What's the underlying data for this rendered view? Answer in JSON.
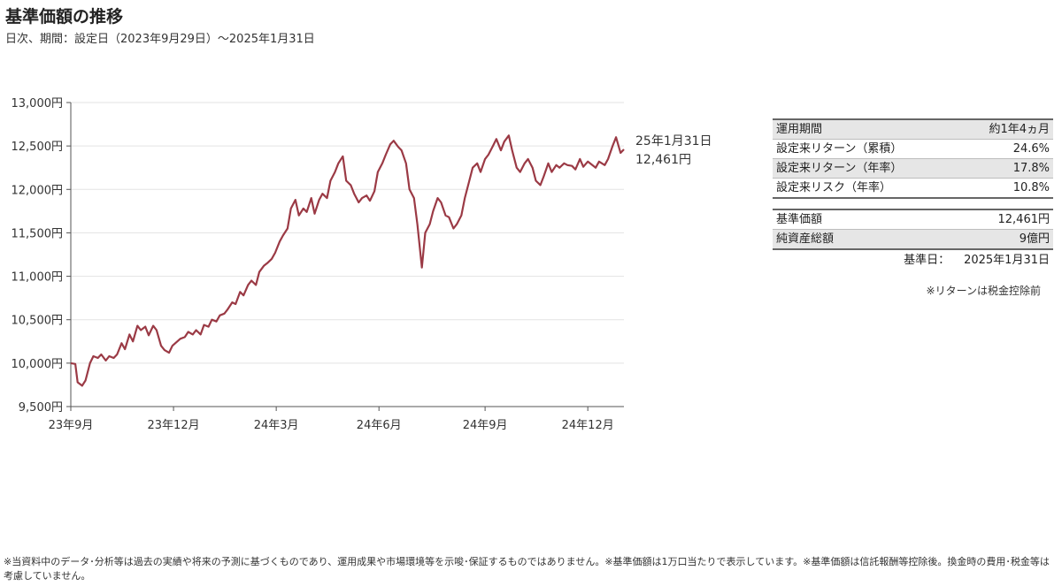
{
  "header": {
    "title": "基準価額の推移",
    "subtitle": "日次、期間：設定日（2023年9月29日）～2025年1月31日"
  },
  "chart_data": {
    "type": "line",
    "title": "",
    "xlabel": "",
    "ylabel": "",
    "ylim": [
      9500,
      13000
    ],
    "y_ticks": [
      9500,
      10000,
      10500,
      11000,
      11500,
      12000,
      12500,
      13000
    ],
    "y_tick_labels": [
      "9,500円",
      "10,000円",
      "10,500円",
      "11,000円",
      "11,500円",
      "12,000円",
      "12,500円",
      "13,000円"
    ],
    "x_ticks": [
      {
        "date": "2023-09-29",
        "label": "23年9月"
      },
      {
        "date": "2023-12-29",
        "label": "23年12月"
      },
      {
        "date": "2024-03-29",
        "label": "24年3月"
      },
      {
        "date": "2024-06-28",
        "label": "24年6月"
      },
      {
        "date": "2024-09-30",
        "label": "24年9月"
      },
      {
        "date": "2024-12-30",
        "label": "24年12月"
      }
    ],
    "x_range": [
      "2023-09-29",
      "2025-01-31"
    ],
    "grid": "horizontal",
    "line_color": "#9b3a45",
    "end_annotation": {
      "date_label": "25年1月31日",
      "value_label": "12,461円"
    },
    "series": [
      {
        "name": "",
        "points": [
          [
            "2023-09-29",
            10000
          ],
          [
            "2023-10-03",
            9990
          ],
          [
            "2023-10-05",
            9780
          ],
          [
            "2023-10-09",
            9740
          ],
          [
            "2023-10-12",
            9800
          ],
          [
            "2023-10-16",
            10000
          ],
          [
            "2023-10-19",
            10080
          ],
          [
            "2023-10-23",
            10060
          ],
          [
            "2023-10-26",
            10100
          ],
          [
            "2023-10-30",
            10030
          ],
          [
            "2023-11-02",
            10080
          ],
          [
            "2023-11-06",
            10060
          ],
          [
            "2023-11-09",
            10100
          ],
          [
            "2023-11-13",
            10230
          ],
          [
            "2023-11-16",
            10160
          ],
          [
            "2023-11-20",
            10330
          ],
          [
            "2023-11-23",
            10250
          ],
          [
            "2023-11-27",
            10430
          ],
          [
            "2023-11-30",
            10380
          ],
          [
            "2023-12-04",
            10420
          ],
          [
            "2023-12-07",
            10320
          ],
          [
            "2023-12-11",
            10430
          ],
          [
            "2023-12-14",
            10380
          ],
          [
            "2023-12-18",
            10200
          ],
          [
            "2023-12-21",
            10150
          ],
          [
            "2023-12-25",
            10120
          ],
          [
            "2023-12-28",
            10200
          ],
          [
            "2024-01-04",
            10280
          ],
          [
            "2024-01-08",
            10300
          ],
          [
            "2024-01-11",
            10360
          ],
          [
            "2024-01-15",
            10330
          ],
          [
            "2024-01-18",
            10380
          ],
          [
            "2024-01-22",
            10330
          ],
          [
            "2024-01-25",
            10440
          ],
          [
            "2024-01-29",
            10420
          ],
          [
            "2024-02-01",
            10500
          ],
          [
            "2024-02-05",
            10480
          ],
          [
            "2024-02-08",
            10550
          ],
          [
            "2024-02-12",
            10570
          ],
          [
            "2024-02-15",
            10620
          ],
          [
            "2024-02-19",
            10700
          ],
          [
            "2024-02-22",
            10680
          ],
          [
            "2024-02-26",
            10820
          ],
          [
            "2024-02-29",
            10780
          ],
          [
            "2024-03-04",
            10900
          ],
          [
            "2024-03-07",
            10950
          ],
          [
            "2024-03-11",
            10900
          ],
          [
            "2024-03-14",
            11050
          ],
          [
            "2024-03-18",
            11120
          ],
          [
            "2024-03-21",
            11150
          ],
          [
            "2024-03-25",
            11200
          ],
          [
            "2024-03-28",
            11270
          ],
          [
            "2024-04-01",
            11400
          ],
          [
            "2024-04-04",
            11470
          ],
          [
            "2024-04-08",
            11550
          ],
          [
            "2024-04-11",
            11780
          ],
          [
            "2024-04-15",
            11880
          ],
          [
            "2024-04-18",
            11700
          ],
          [
            "2024-04-22",
            11780
          ],
          [
            "2024-04-25",
            11740
          ],
          [
            "2024-04-29",
            11900
          ],
          [
            "2024-05-02",
            11720
          ],
          [
            "2024-05-06",
            11880
          ],
          [
            "2024-05-09",
            11950
          ],
          [
            "2024-05-13",
            11900
          ],
          [
            "2024-05-16",
            12100
          ],
          [
            "2024-05-20",
            12200
          ],
          [
            "2024-05-23",
            12300
          ],
          [
            "2024-05-27",
            12380
          ],
          [
            "2024-05-30",
            12100
          ],
          [
            "2024-06-03",
            12050
          ],
          [
            "2024-06-06",
            11950
          ],
          [
            "2024-06-10",
            11850
          ],
          [
            "2024-06-13",
            11900
          ],
          [
            "2024-06-17",
            11930
          ],
          [
            "2024-06-20",
            11870
          ],
          [
            "2024-06-24",
            11980
          ],
          [
            "2024-06-27",
            12200
          ],
          [
            "2024-07-01",
            12300
          ],
          [
            "2024-07-04",
            12400
          ],
          [
            "2024-07-08",
            12520
          ],
          [
            "2024-07-11",
            12560
          ],
          [
            "2024-07-15",
            12490
          ],
          [
            "2024-07-18",
            12450
          ],
          [
            "2024-07-22",
            12300
          ],
          [
            "2024-07-25",
            12000
          ],
          [
            "2024-07-29",
            11900
          ],
          [
            "2024-08-01",
            11600
          ],
          [
            "2024-08-05",
            11100
          ],
          [
            "2024-08-08",
            11500
          ],
          [
            "2024-08-12",
            11600
          ],
          [
            "2024-08-15",
            11750
          ],
          [
            "2024-08-19",
            11900
          ],
          [
            "2024-08-22",
            11850
          ],
          [
            "2024-08-26",
            11700
          ],
          [
            "2024-08-29",
            11680
          ],
          [
            "2024-09-02",
            11550
          ],
          [
            "2024-09-05",
            11600
          ],
          [
            "2024-09-09",
            11700
          ],
          [
            "2024-09-12",
            11900
          ],
          [
            "2024-09-16",
            12100
          ],
          [
            "2024-09-19",
            12250
          ],
          [
            "2024-09-23",
            12300
          ],
          [
            "2024-09-26",
            12200
          ],
          [
            "2024-09-30",
            12350
          ],
          [
            "2024-10-03",
            12400
          ],
          [
            "2024-10-07",
            12500
          ],
          [
            "2024-10-10",
            12580
          ],
          [
            "2024-10-14",
            12450
          ],
          [
            "2024-10-17",
            12550
          ],
          [
            "2024-10-21",
            12620
          ],
          [
            "2024-10-24",
            12450
          ],
          [
            "2024-10-28",
            12250
          ],
          [
            "2024-10-31",
            12200
          ],
          [
            "2024-11-04",
            12300
          ],
          [
            "2024-11-07",
            12350
          ],
          [
            "2024-11-11",
            12250
          ],
          [
            "2024-11-14",
            12100
          ],
          [
            "2024-11-18",
            12050
          ],
          [
            "2024-11-21",
            12150
          ],
          [
            "2024-11-25",
            12300
          ],
          [
            "2024-11-28",
            12200
          ],
          [
            "2024-12-02",
            12280
          ],
          [
            "2024-12-05",
            12250
          ],
          [
            "2024-12-09",
            12300
          ],
          [
            "2024-12-12",
            12280
          ],
          [
            "2024-12-16",
            12270
          ],
          [
            "2024-12-19",
            12230
          ],
          [
            "2024-12-23",
            12350
          ],
          [
            "2024-12-26",
            12260
          ],
          [
            "2024-12-30",
            12320
          ],
          [
            "2025-01-06",
            12250
          ],
          [
            "2025-01-09",
            12320
          ],
          [
            "2025-01-14",
            12280
          ],
          [
            "2025-01-17",
            12350
          ],
          [
            "2025-01-21",
            12500
          ],
          [
            "2025-01-24",
            12600
          ],
          [
            "2025-01-28",
            12420
          ],
          [
            "2025-01-31",
            12461
          ]
        ]
      }
    ]
  },
  "stats_table_1": [
    {
      "label": "運用期間",
      "value": "約1年4ヵ月"
    },
    {
      "label": "設定来リターン（累積）",
      "value": "24.6%"
    },
    {
      "label": "設定来リターン（年率）",
      "value": "17.8%"
    },
    {
      "label": "設定来リスク（年率）",
      "value": "10.8%"
    }
  ],
  "stats_table_2": [
    {
      "label": "基準価額",
      "value": "12,461円"
    },
    {
      "label": "純資産総額",
      "value": "9億円"
    }
  ],
  "base_date": {
    "label": "基準日：",
    "value": "2025年1月31日"
  },
  "note_return": "※リターンは税金控除前",
  "disclaimer": "※当資料中のデータ･分析等は過去の実績や将来の予測に基づくものであり、運用成果や市場環境等を示唆･保証するものではありません。※基準価額は1万口当たりで表示しています。※基準価額は信託報酬等控除後。換金時の費用･税金等は考慮していません。"
}
